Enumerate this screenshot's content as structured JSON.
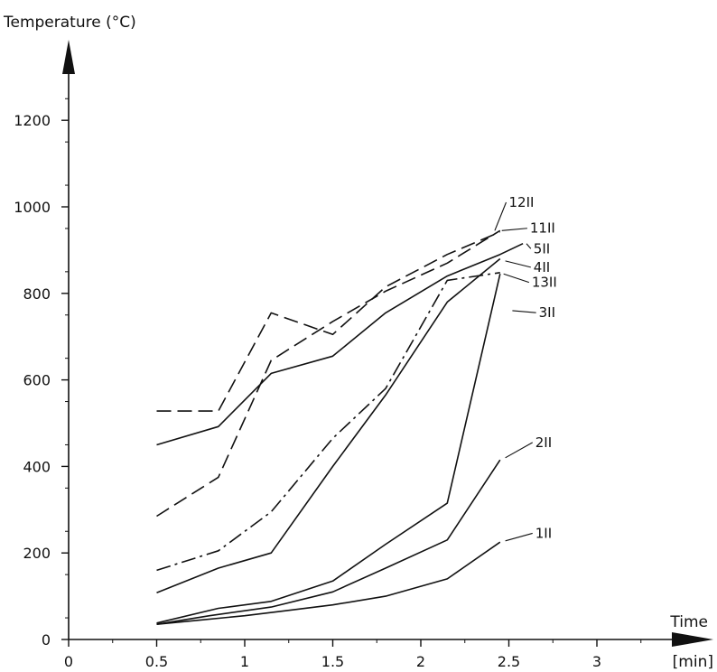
{
  "chart_data": {
    "type": "line",
    "ylabel": "Temperature (°C)",
    "xlabel": "Time",
    "xunit": "[min]",
    "xlim": [
      0,
      3.6
    ],
    "ylim": [
      0,
      1350
    ],
    "x_ticks": [
      {
        "value": 0,
        "label": "0"
      },
      {
        "value": 0.5,
        "label": "0.5"
      },
      {
        "value": 1,
        "label": "1"
      },
      {
        "value": 1.5,
        "label": "1.5"
      },
      {
        "value": 2,
        "label": "2"
      },
      {
        "value": 2.5,
        "label": "2.5"
      },
      {
        "value": 3,
        "label": "3"
      }
    ],
    "y_ticks": [
      {
        "value": 0,
        "label": "0"
      },
      {
        "value": 200,
        "label": "200"
      },
      {
        "value": 400,
        "label": "400"
      },
      {
        "value": 600,
        "label": "600"
      },
      {
        "value": 800,
        "label": "800"
      },
      {
        "value": 1000,
        "label": "1000"
      },
      {
        "value": 1200,
        "label": "1200"
      }
    ],
    "grid": false,
    "series": [
      {
        "name": "1II",
        "dash": "solid",
        "points": [
          [
            0.5,
            35
          ],
          [
            0.75,
            45
          ],
          [
            1.0,
            55
          ],
          [
            1.2,
            65
          ],
          [
            1.5,
            80
          ],
          [
            1.8,
            100
          ],
          [
            2.15,
            140
          ],
          [
            2.45,
            225
          ]
        ],
        "label_at": [
          2.65,
          235
        ],
        "leader_from": [
          2.48,
          228
        ]
      },
      {
        "name": "2II",
        "dash": "solid",
        "points": [
          [
            0.5,
            35
          ],
          [
            0.8,
            55
          ],
          [
            1.15,
            75
          ],
          [
            1.5,
            110
          ],
          [
            1.8,
            165
          ],
          [
            2.15,
            230
          ],
          [
            2.45,
            415
          ]
        ],
        "label_at": [
          2.65,
          445
        ],
        "leader_from": [
          2.48,
          420
        ]
      },
      {
        "name": "3II",
        "dash": "solid",
        "points": [
          [
            0.5,
            38
          ],
          [
            0.85,
            72
          ],
          [
            1.15,
            88
          ],
          [
            1.5,
            135
          ],
          [
            1.8,
            220
          ],
          [
            2.15,
            315
          ],
          [
            2.45,
            845
          ]
        ],
        "label_at": [
          2.67,
          745
        ],
        "leader_from": [
          2.52,
          760
        ]
      },
      {
        "name": "13II",
        "dash": "solid",
        "points": [
          [
            0.5,
            108
          ],
          [
            0.85,
            165
          ],
          [
            1.15,
            200
          ],
          [
            1.5,
            400
          ],
          [
            1.8,
            565
          ],
          [
            2.15,
            780
          ],
          [
            2.45,
            880
          ]
        ],
        "label_at": [
          2.63,
          815
        ],
        "leader_from": [
          2.47,
          845
        ]
      },
      {
        "name": "4II",
        "dash": "dashdot",
        "points": [
          [
            0.5,
            160
          ],
          [
            0.85,
            205
          ],
          [
            1.15,
            295
          ],
          [
            1.5,
            465
          ],
          [
            1.8,
            580
          ],
          [
            2.15,
            830
          ],
          [
            2.45,
            848
          ]
        ],
        "label_at": [
          2.64,
          850
        ],
        "leader_from": [
          2.48,
          875
        ]
      },
      {
        "name": "5II",
        "dash": "solid",
        "points": [
          [
            0.5,
            450
          ],
          [
            0.85,
            492
          ],
          [
            1.15,
            615
          ],
          [
            1.5,
            655
          ],
          [
            1.8,
            755
          ],
          [
            2.15,
            840
          ],
          [
            2.45,
            890
          ],
          [
            2.58,
            915
          ]
        ],
        "label_at": [
          2.64,
          893
        ],
        "leader_from": [
          2.6,
          915
        ]
      },
      {
        "name": "11II",
        "dash": "dashed",
        "points": [
          [
            0.5,
            285
          ],
          [
            0.85,
            375
          ],
          [
            1.15,
            645
          ],
          [
            1.5,
            735
          ],
          [
            1.8,
            805
          ],
          [
            2.15,
            870
          ],
          [
            2.45,
            945
          ]
        ],
        "label_at": [
          2.62,
          940
        ],
        "leader_from": [
          2.46,
          945
        ]
      },
      {
        "name": "12II",
        "dash": "dashed",
        "points": [
          [
            0.5,
            528
          ],
          [
            0.85,
            528
          ],
          [
            1.15,
            755
          ],
          [
            1.5,
            705
          ],
          [
            1.8,
            815
          ],
          [
            2.15,
            890
          ],
          [
            2.45,
            942
          ]
        ],
        "label_at": [
          2.5,
          1000
        ],
        "leader_from": [
          2.42,
          945
        ]
      }
    ]
  }
}
